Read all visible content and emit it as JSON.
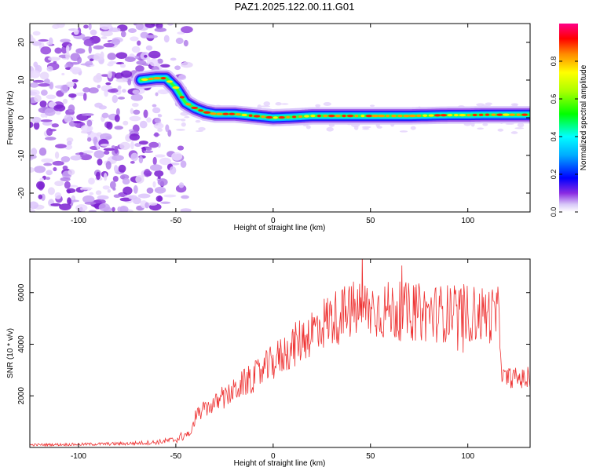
{
  "title": "PAZ1.2025.122.00.11.G01",
  "chart_data": [
    {
      "type": "heatmap",
      "xlabel": "Height of straight line (km)",
      "ylabel": "Frequency (Hz)",
      "xlim": [
        -125,
        132
      ],
      "ylim": [
        -25,
        25
      ],
      "x_ticks": [
        -100,
        -50,
        0,
        50,
        100
      ],
      "y_ticks": [
        -20,
        -10,
        0,
        10,
        20
      ],
      "colorbar": {
        "label": "Normalized spectral amplitude",
        "range": [
          0,
          1
        ],
        "ticks": [
          "0.0",
          "0.2",
          "0.4",
          "0.6",
          "0.8"
        ]
      },
      "ridge": {
        "x": [
          -68,
          -60,
          -55,
          -50,
          -45,
          -40,
          -35,
          -30,
          -20,
          -10,
          0,
          10,
          20,
          30,
          40,
          50,
          60,
          70,
          80,
          90,
          100,
          110,
          120,
          132
        ],
        "y": [
          10,
          10.5,
          10.5,
          8,
          4,
          2.5,
          1.5,
          1,
          1,
          0.5,
          0,
          0.2,
          0.5,
          0.5,
          0.5,
          0.5,
          0.5,
          0.5,
          0.6,
          0.7,
          0.7,
          0.8,
          0.8,
          0.8
        ]
      },
      "noise_region_x": [
        -125,
        -50
      ]
    },
    {
      "type": "line",
      "xlabel": "Height of straight line (km)",
      "ylabel": "SNR (10 * v/v)",
      "xlim": [
        -125,
        132
      ],
      "ylim": [
        0,
        7300
      ],
      "x_ticks": [
        -100,
        -50,
        0,
        50,
        100
      ],
      "y_ticks": [
        2000,
        4000,
        6000
      ],
      "color": "#ee3333",
      "series": [
        {
          "x": [
            -125,
            -100,
            -75,
            -60,
            -50,
            -45,
            -42,
            -40,
            -35,
            -30,
            -25,
            -20,
            -15,
            -10,
            -5,
            0,
            5,
            10,
            15,
            20,
            25,
            30,
            35,
            40,
            45,
            50,
            60,
            70,
            80,
            90,
            100,
            105,
            110,
            116,
            118,
            125,
            132
          ],
          "values": [
            100,
            120,
            150,
            200,
            300,
            500,
            550,
            1200,
            1500,
            1700,
            1900,
            2200,
            2500,
            2700,
            3000,
            3300,
            3600,
            3900,
            4200,
            4500,
            4800,
            5000,
            5100,
            5300,
            5350,
            5350,
            5300,
            5250,
            5200,
            5200,
            5200,
            5150,
            5150,
            5100,
            2700,
            2700,
            2600
          ]
        }
      ]
    }
  ]
}
